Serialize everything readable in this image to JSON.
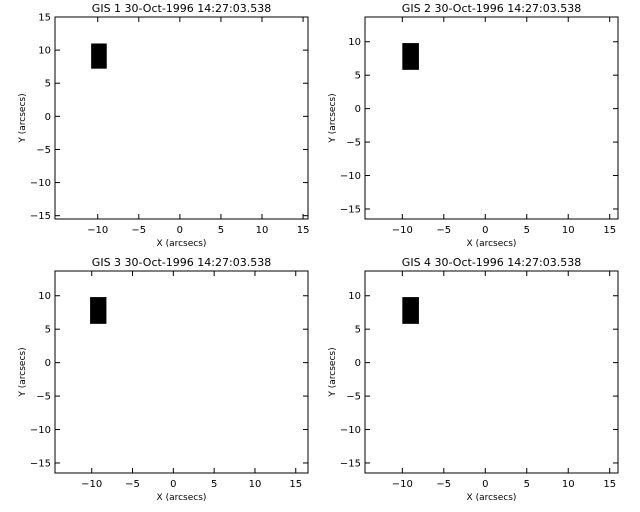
{
  "figure": {
    "background": "#ffffff",
    "ink": "#000000"
  },
  "chart_data": [
    {
      "type": "scatter",
      "title": "GIS 1 30-Oct-1996 14:27:03.538",
      "xlabel": "X (arcsecs)",
      "ylabel": "Y (arcsecs)",
      "xlim": [
        -15.2,
        15.6
      ],
      "ylim": [
        -15.5,
        15.0
      ],
      "xticks": [
        -10,
        -5,
        0,
        5,
        10,
        15
      ],
      "yticks": [
        -15,
        -10,
        -5,
        0,
        5,
        10,
        15
      ],
      "grid": false,
      "rects": [
        {
          "x0": -10.8,
          "x1": -8.9,
          "y0": 7.2,
          "y1": 11.0,
          "color": "#000000"
        }
      ]
    },
    {
      "type": "scatter",
      "title": "GIS 2 30-Oct-1996 14:27:03.538",
      "xlabel": "X (arcsecs)",
      "ylabel": "Y (arcsecs)",
      "xlim": [
        -14.5,
        16.0
      ],
      "ylim": [
        -16.5,
        13.7
      ],
      "xticks": [
        -10,
        -5,
        0,
        5,
        10,
        15
      ],
      "yticks": [
        -15,
        -10,
        -5,
        0,
        5,
        10
      ],
      "grid": false,
      "rects": [
        {
          "x0": -10.0,
          "x1": -8.0,
          "y0": 5.8,
          "y1": 9.8,
          "color": "#000000"
        }
      ]
    },
    {
      "type": "scatter",
      "title": "GIS 3 30-Oct-1996 14:27:03.538",
      "xlabel": "X (arcsecs)",
      "ylabel": "Y (arcsecs)",
      "xlim": [
        -14.5,
        16.5
      ],
      "ylim": [
        -16.5,
        13.7
      ],
      "xticks": [
        -10,
        -5,
        0,
        5,
        10,
        15
      ],
      "yticks": [
        -15,
        -10,
        -5,
        0,
        5,
        10
      ],
      "grid": false,
      "rects": [
        {
          "x0": -10.2,
          "x1": -8.2,
          "y0": 5.8,
          "y1": 9.8,
          "color": "#000000"
        }
      ]
    },
    {
      "type": "scatter",
      "title": "GIS 4 30-Oct-1996 14:27:03.538",
      "xlabel": "X (arcsecs)",
      "ylabel": "Y (arcsecs)",
      "xlim": [
        -14.5,
        16.0
      ],
      "ylim": [
        -16.5,
        13.7
      ],
      "xticks": [
        -10,
        -5,
        0,
        5,
        10,
        15
      ],
      "yticks": [
        -15,
        -10,
        -5,
        0,
        5,
        10
      ],
      "grid": false,
      "rects": [
        {
          "x0": -10.0,
          "x1": -8.0,
          "y0": 5.8,
          "y1": 9.8,
          "color": "#000000"
        }
      ]
    }
  ]
}
